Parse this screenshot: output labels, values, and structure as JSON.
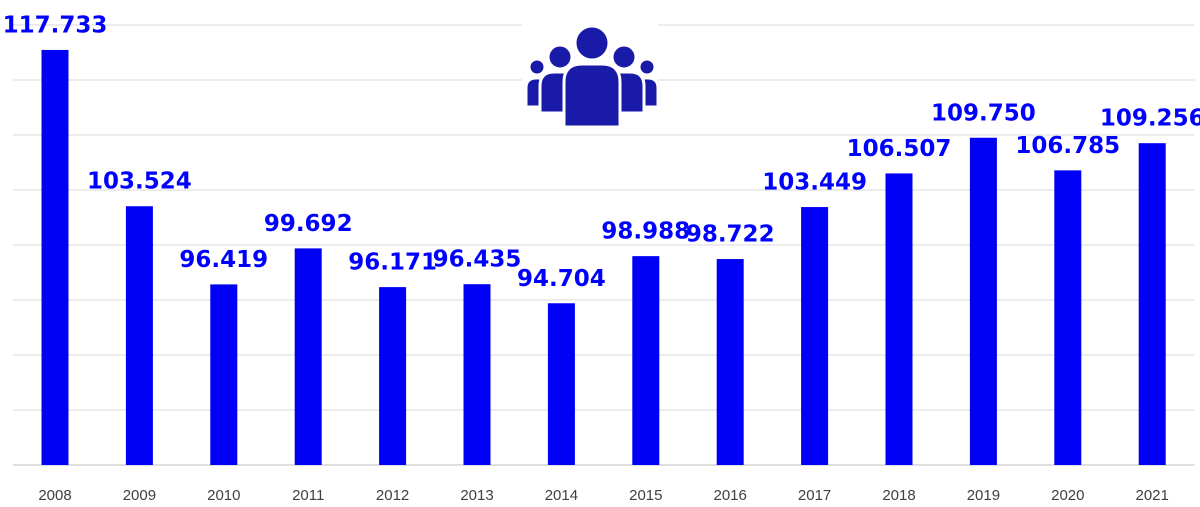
{
  "chart_data": {
    "type": "bar",
    "categories": [
      "2008",
      "2009",
      "2010",
      "2011",
      "2012",
      "2013",
      "2014",
      "2015",
      "2016",
      "2017",
      "2018",
      "2019",
      "2020",
      "2021"
    ],
    "values": [
      117.733,
      103.524,
      96.419,
      99.692,
      96.171,
      96.435,
      94.704,
      98.988,
      98.722,
      103.449,
      106.507,
      109.75,
      106.785,
      109.256
    ],
    "value_labels": [
      "117.733",
      "103.524",
      "96.419",
      "99.692",
      "96.171",
      "96.435",
      "94.704",
      "98.988",
      "98.722",
      "103.449",
      "106.507",
      "109.750",
      "106.785",
      "109.256"
    ],
    "color": "#0000f5",
    "ylim": [
      80,
      120
    ],
    "yticks": [
      80,
      85,
      90,
      95,
      100,
      105,
      110,
      115,
      120
    ],
    "grid": true
  }
}
